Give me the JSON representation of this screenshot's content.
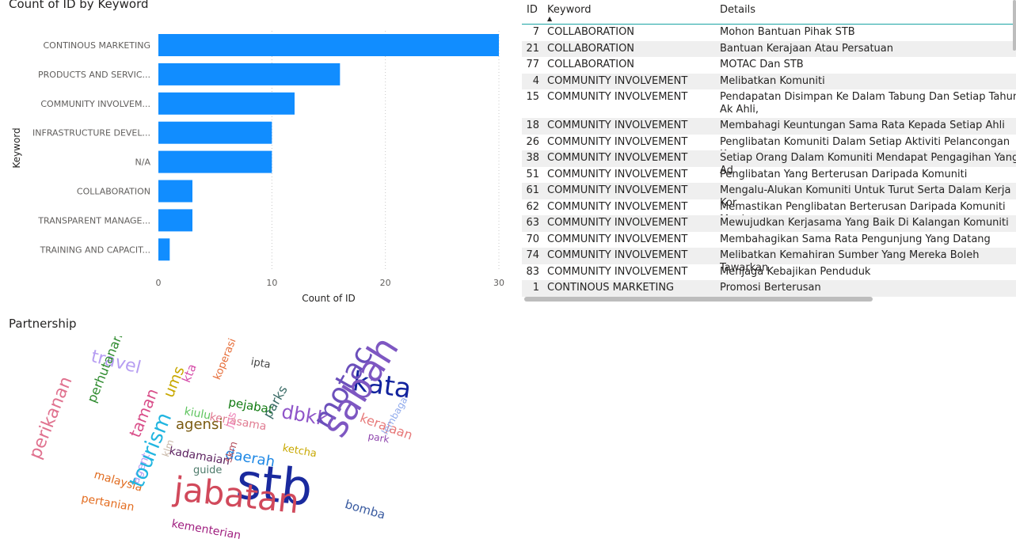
{
  "chart_title": "Count of ID by Keyword",
  "chart_data": [
    {
      "type": "bar",
      "orientation": "horizontal",
      "title": "Count of ID by Keyword",
      "xlabel": "Count of ID",
      "ylabel": "Keyword",
      "categories": [
        "CONTINOUS MARKETING",
        "PRODUCTS AND SERVIC...",
        "COMMUNITY INVOLVEM...",
        "INFRASTRUCTURE DEVEL...",
        "N/A",
        "COLLABORATION",
        "TRANSPARENT MANAGE...",
        "TRAINING AND CAPACIT..."
      ],
      "values": [
        30,
        16,
        12,
        10,
        10,
        3,
        3,
        1
      ],
      "xlim": [
        0,
        30
      ],
      "xticks": [
        0,
        10,
        20,
        30
      ],
      "grid": "vertical-dotted",
      "color": "#118DFF"
    },
    {
      "type": "wordcloud",
      "title": "Partnership",
      "words": [
        {
          "text": "travel",
          "color": "#b69df2"
        },
        {
          "text": "ipta",
          "color": "#444444"
        },
        {
          "text": "kata",
          "color": "#12239e"
        },
        {
          "text": "perhutanan",
          "color": "#2e8b2e"
        },
        {
          "text": "ums",
          "color": "#c8a800"
        },
        {
          "text": "kta",
          "color": "#d64eaa"
        },
        {
          "text": "koperasi",
          "color": "#e66c37"
        },
        {
          "text": "pejabat",
          "color": "#107a10"
        },
        {
          "text": "dbkk",
          "color": "#8f55c9"
        },
        {
          "text": "motac",
          "color": "#6b4fbb"
        },
        {
          "text": "kerajaan",
          "color": "#e77a7a"
        },
        {
          "text": "kiulu",
          "color": "#5ec45e"
        },
        {
          "text": "kerjasama",
          "color": "#e07b91"
        },
        {
          "text": "parks",
          "color": "#3a6b66"
        },
        {
          "text": "agensi",
          "color": "#7a5a10"
        },
        {
          "text": "jps",
          "color": "#f08dbf"
        },
        {
          "text": "sabah",
          "color": "#7e57c2"
        },
        {
          "text": "park",
          "color": "#8e44ad"
        },
        {
          "text": "lembaga",
          "color": "#8ea9ec"
        },
        {
          "text": "taman",
          "color": "#d94f8a"
        },
        {
          "text": "ketcha",
          "color": "#c8a800"
        },
        {
          "text": "kadamaian",
          "color": "#5a1f5e"
        },
        {
          "text": "daerah",
          "color": "#1e88e5"
        },
        {
          "text": "perikanan",
          "color": "#e0728f"
        },
        {
          "text": "klm",
          "color": "#c9b8a8"
        },
        {
          "text": "guide",
          "color": "#4e7b6b"
        },
        {
          "text": "skm",
          "color": "#b3505e"
        },
        {
          "text": "stb",
          "color": "#1a2a9e"
        },
        {
          "text": "malaysia",
          "color": "#e06b1f"
        },
        {
          "text": "agent",
          "color": "#b69df2"
        },
        {
          "text": "jabatan",
          "color": "#d1495b"
        },
        {
          "text": "pertanian",
          "color": "#e36c1f"
        },
        {
          "text": "tourism",
          "color": "#21b5e0"
        },
        {
          "text": "bomba",
          "color": "#3a5ba0"
        },
        {
          "text": "kementerian",
          "color": "#a02080"
        }
      ]
    }
  ],
  "table": {
    "headers": {
      "id": "ID",
      "keyword": "Keyword",
      "details": "Details"
    },
    "rows": [
      {
        "id": "7",
        "keyword": "COLLABORATION",
        "details": "Mohon Bantuan Pihak STB"
      },
      {
        "id": "21",
        "keyword": "COLLABORATION",
        "details": "Bantuan Kerajaan Atau Persatuan"
      },
      {
        "id": "77",
        "keyword": "COLLABORATION",
        "details": "MOTAC Dan STB"
      },
      {
        "id": "4",
        "keyword": "COMMUNITY INVOLVEMENT",
        "details": "Melibatkan Komuniti"
      },
      {
        "id": "15",
        "keyword": "COMMUNITY INVOLVEMENT",
        "details": "Pendapatan Disimpan Ke Dalam Tabung Dan Setiap Tahun Ak Ahli,"
      },
      {
        "id": "18",
        "keyword": "COMMUNITY INVOLVEMENT",
        "details": "Membahagi Keuntungan Sama Rata Kepada Setiap Ahli"
      },
      {
        "id": "26",
        "keyword": "COMMUNITY INVOLVEMENT",
        "details": "Penglibatan Komuniti Dalam Setiap Aktiviti Pelancongan Kepa"
      },
      {
        "id": "38",
        "keyword": "COMMUNITY INVOLVEMENT",
        "details": "Setiap Orang Dalam Komuniti Mendapat Pengagihan Yang Ad"
      },
      {
        "id": "51",
        "keyword": "COMMUNITY INVOLVEMENT",
        "details": "Penglibatan Yang Berterusan Daripada Komuniti"
      },
      {
        "id": "61",
        "keyword": "COMMUNITY INVOLVEMENT",
        "details": "Mengalu-Alukan Komuniti Untuk Turut Serta Dalam Kerja Kor"
      },
      {
        "id": "62",
        "keyword": "COMMUNITY INVOLVEMENT",
        "details": "Memastikan Penglibatan Berterusan Daripada Komuniti Menj"
      },
      {
        "id": "63",
        "keyword": "COMMUNITY INVOLVEMENT",
        "details": "Mewujudkan Kerjasama Yang Baik Di Kalangan Komuniti"
      },
      {
        "id": "70",
        "keyword": "COMMUNITY INVOLVEMENT",
        "details": "Membahagikan Sama Rata Pengunjung Yang Datang"
      },
      {
        "id": "74",
        "keyword": "COMMUNITY INVOLVEMENT",
        "details": "Melibatkan Kemahiran Sumber Yang Mereka Boleh Tawarkan"
      },
      {
        "id": "83",
        "keyword": "COMMUNITY INVOLVEMENT",
        "details": "Menjaga Kebajikan Penduduk"
      },
      {
        "id": "1",
        "keyword": "CONTINOUS MARKETING",
        "details": "Promosi Berterusan"
      }
    ]
  }
}
